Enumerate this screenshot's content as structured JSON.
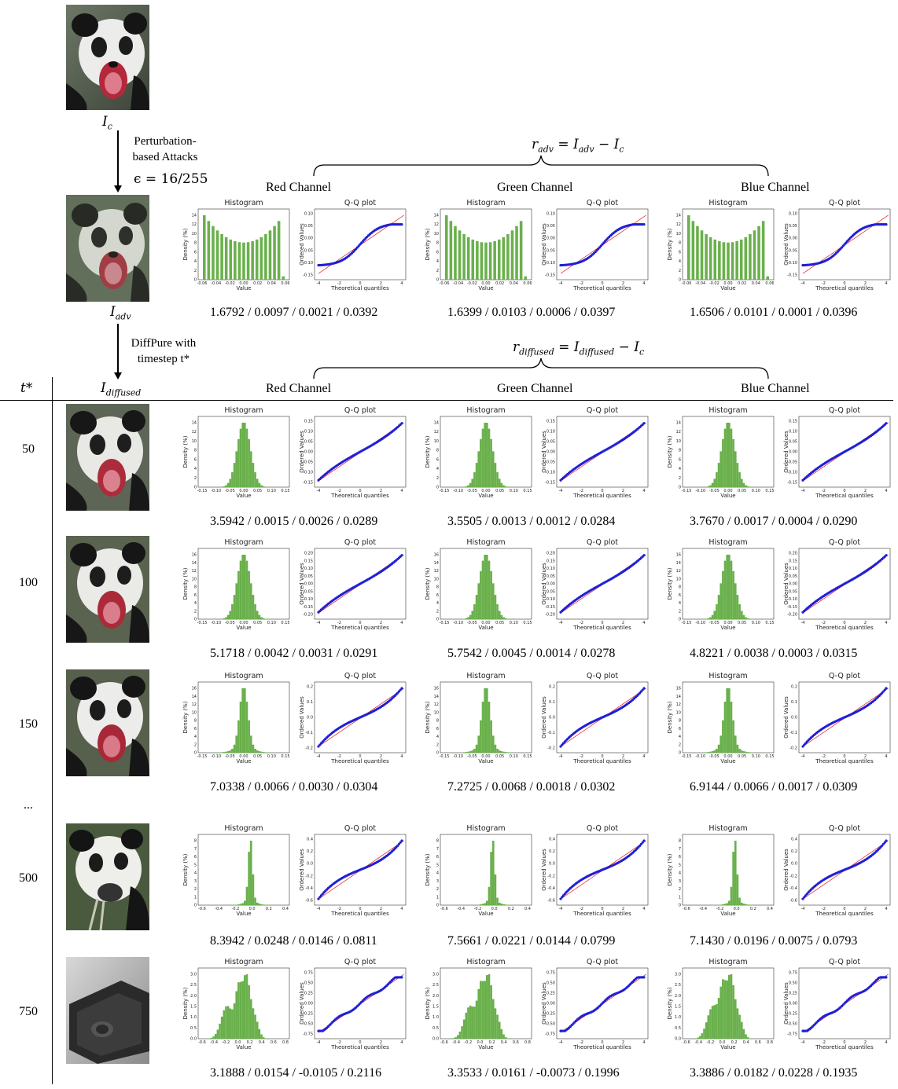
{
  "labels": {
    "ic": "I",
    "ic_sub": "c",
    "iadv": "I",
    "iadv_sub": "adv",
    "idiff": "I",
    "idiff_sub": "diffused",
    "attack_line1": "Perturbation-",
    "attack_line2": "based Attacks",
    "epsilon": "ϵ = 16/255",
    "diffpure_line1": "DiffPure with",
    "diffpure_line2": "timestep t*",
    "tstar_header": "t*",
    "ellipsis": "...",
    "radv_formula": "r",
    "radv_sub": "adv",
    "radv_rhs": " = I",
    "radv_rhs_sub": "adv",
    "radv_tail": " − I",
    "radv_tail_sub": "c",
    "rdiff_formula": "r",
    "rdiff_sub": "diffused",
    "rdiff_rhs": " = I",
    "rdiff_rhs_sub": "diffused",
    "rdiff_tail": " − I",
    "rdiff_tail_sub": "c"
  },
  "channels": [
    "Red Channel",
    "Green Channel",
    "Blue Channel"
  ],
  "plot_titles": {
    "hist": "Histogram",
    "qq": "Q-Q plot"
  },
  "axis_labels": {
    "hist_x": "Value",
    "hist_y": "Density (%)",
    "qq_x": "Theoretical quantiles",
    "qq_y": "Ordered Values"
  },
  "colors": {
    "hist": "#6ab04c",
    "qq_points": "#1f1fd6",
    "qq_line": "#e03030"
  },
  "chart_data": [
    {
      "type": "bar",
      "row": "adv",
      "timestep": "",
      "channel_stats": [
        "1.6792 / 0.0097 / 0.0021 / 0.0392",
        "1.6399 / 0.0103 / 0.0006 / 0.0397",
        "1.6506 / 0.0101 / 0.0001 / 0.0396"
      ],
      "shape": "uniform",
      "hist_xticks": [
        "-0.06",
        "-0.04",
        "-0.02",
        "0.00",
        "0.02",
        "0.04",
        "0.06"
      ],
      "hist_yticks": [
        "0",
        "2",
        "4",
        "6",
        "8",
        "10",
        "12",
        "14"
      ],
      "qq_xticks": [
        "-4",
        "-2",
        "0",
        "2",
        "4"
      ],
      "qq_yticks": [
        "-0.15",
        "-0.10",
        "-0.05",
        "0.00",
        "0.05",
        "0.10"
      ]
    },
    {
      "type": "bar",
      "row": "diffused",
      "timestep": "50",
      "channel_stats": [
        "3.5942 / 0.0015 / 0.0026 / 0.0289",
        "3.5505 / 0.0013 / 0.0012 / 0.0284",
        "3.7670 / 0.0017 / 0.0004 / 0.0290"
      ],
      "shape": "normal",
      "hist_xticks": [
        "-0.15",
        "-0.10",
        "-0.05",
        "0.00",
        "0.05",
        "0.10",
        "0.15"
      ],
      "hist_yticks": [
        "0",
        "2",
        "4",
        "6",
        "8",
        "10",
        "12",
        "14"
      ],
      "qq_xticks": [
        "-4",
        "-2",
        "0",
        "2",
        "4"
      ],
      "qq_yticks": [
        "-0.15",
        "-0.10",
        "-0.05",
        "0.00",
        "0.05",
        "0.10",
        "0.15"
      ]
    },
    {
      "type": "bar",
      "row": "diffused",
      "timestep": "100",
      "channel_stats": [
        "5.1718 / 0.0042 / 0.0031 / 0.0291",
        "5.7542 / 0.0045 / 0.0014 / 0.0278",
        "4.8221 / 0.0038 / 0.0003 / 0.0315"
      ],
      "shape": "normal",
      "hist_xticks": [
        "-0.15",
        "-0.10",
        "-0.05",
        "0.00",
        "0.05",
        "0.10",
        "0.15"
      ],
      "hist_yticks": [
        "0",
        "2",
        "4",
        "6",
        "8",
        "10",
        "12",
        "14",
        "16"
      ],
      "qq_xticks": [
        "-4",
        "-2",
        "0",
        "2",
        "4"
      ],
      "qq_yticks": [
        "-0.20",
        "-0.15",
        "-0.10",
        "-0.05",
        "0.00",
        "0.05",
        "0.10",
        "0.15",
        "0.20"
      ]
    },
    {
      "type": "bar",
      "row": "diffused",
      "timestep": "150",
      "channel_stats": [
        "7.0338 / 0.0066 / 0.0030 / 0.0304",
        "7.2725 / 0.0068 / 0.0018 / 0.0302",
        "6.9144 / 0.0066 / 0.0017 / 0.0309"
      ],
      "shape": "peaked",
      "hist_xticks": [
        "-0.15",
        "-0.10",
        "-0.05",
        "0.00",
        "0.05",
        "0.10",
        "0.15"
      ],
      "hist_yticks": [
        "0",
        "2",
        "4",
        "6",
        "8",
        "10",
        "12",
        "14",
        "16"
      ],
      "qq_xticks": [
        "-4",
        "-2",
        "0",
        "2",
        "4"
      ],
      "qq_yticks": [
        "-0.2",
        "-0.1",
        "0.0",
        "0.1",
        "0.2"
      ]
    },
    {
      "type": "bar",
      "row": "diffused",
      "timestep": "500",
      "channel_stats": [
        "8.3942 / 0.0248 / 0.0146 / 0.0811",
        "7.5661 / 0.0221 / 0.0144 / 0.0799",
        "7.1430 / 0.0196 / 0.0075 / 0.0793"
      ],
      "shape": "spike",
      "hist_xticks": [
        "-0.6",
        "-0.4",
        "-0.2",
        "0.0",
        "0.2",
        "0.4"
      ],
      "hist_yticks": [
        "0",
        "1",
        "2",
        "3",
        "4",
        "5",
        "6",
        "7",
        "8"
      ],
      "qq_xticks": [
        "-4",
        "-2",
        "0",
        "2",
        "4"
      ],
      "qq_yticks": [
        "-0.6",
        "-0.4",
        "-0.2",
        "0.0",
        "0.2",
        "0.4"
      ]
    },
    {
      "type": "bar",
      "row": "diffused",
      "timestep": "750",
      "channel_stats": [
        "3.1888 / 0.0154 / -0.0105 / 0.2116",
        "3.3533 / 0.0161 / -0.0073 / 0.1996",
        "3.3886 / 0.0182 / 0.0228 / 0.1935"
      ],
      "shape": "multimodal",
      "hist_xticks": [
        "-0.6",
        "-0.4",
        "-0.2",
        "0.0",
        "0.2",
        "0.4",
        "0.6",
        "0.8"
      ],
      "hist_yticks": [
        "0.0",
        "0.5",
        "1.0",
        "1.5",
        "2.0",
        "2.5",
        "3.0"
      ],
      "qq_xticks": [
        "-4",
        "-2",
        "0",
        "2",
        "4"
      ],
      "qq_yticks": [
        "-0.75",
        "-0.50",
        "-0.25",
        "0.00",
        "0.25",
        "0.50",
        "0.75"
      ]
    }
  ]
}
